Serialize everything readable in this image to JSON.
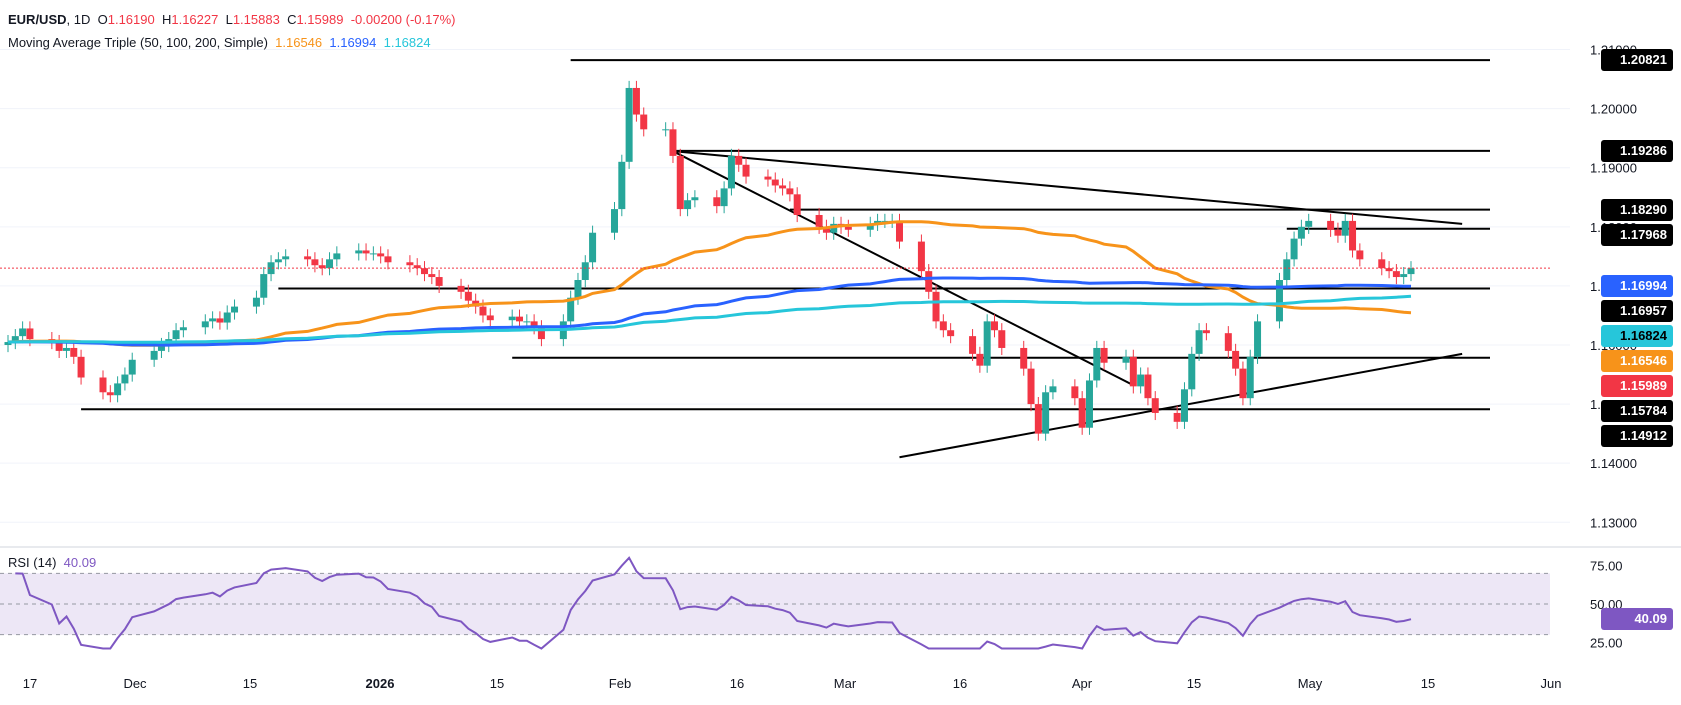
{
  "header": {
    "symbol": "EUR/USD",
    "interval": "1D",
    "o_label": "O",
    "o_value": "1.16190",
    "h_label": "H",
    "h_value": "1.16227",
    "l_label": "L",
    "l_value": "1.15883",
    "c_label": "C",
    "c_value": "1.15989",
    "change": "-0.00200 (-0.17%)"
  },
  "ma_legend": {
    "title": "Moving Average Triple (50, 100, 200, Simple)",
    "v50": "1.16546",
    "v100": "1.16994",
    "v200": "1.16824"
  },
  "rsi_legend": {
    "title": "RSI (14)",
    "value": "40.09"
  },
  "colors": {
    "up": "#26a69a",
    "down": "#f23645",
    "ma50": "#f7931a",
    "ma100": "#2962ff",
    "ma200": "#26c6da",
    "rsi": "#7e57c2",
    "rsi_band": "#ede7f6"
  },
  "price_axis": {
    "ticks": [
      "1.21000",
      "1.20000",
      "1.19000",
      "1.18000",
      "1.17000",
      "1.16000",
      "1.15000",
      "1.14000",
      "1.13000"
    ],
    "tick_values": [
      1.21,
      1.2,
      1.19,
      1.18,
      1.17,
      1.16,
      1.15,
      1.14,
      1.13
    ]
  },
  "price_tags": [
    {
      "text": "1.20821",
      "value": 1.20821,
      "bg": "#000000",
      "fg": "#ffffff"
    },
    {
      "text": "1.19286",
      "value": 1.19286,
      "bg": "#000000",
      "fg": "#ffffff"
    },
    {
      "text": "1.18290",
      "value": 1.1829,
      "bg": "#000000",
      "fg": "#ffffff"
    },
    {
      "text": "1.17968",
      "value": 1.17968,
      "bg": "#000000",
      "fg": "#ffffff"
    },
    {
      "text": "1.16994",
      "value": 1.16994,
      "bg": "#2962ff",
      "fg": "#ffffff"
    },
    {
      "text": "1.16957",
      "value": 1.16957,
      "bg": "#000000",
      "fg": "#ffffff"
    },
    {
      "text": "1.16824",
      "value": 1.16824,
      "bg": "#26c6da",
      "fg": "#000000"
    },
    {
      "text": "1.16546",
      "value": 1.16546,
      "bg": "#f7931a",
      "fg": "#ffffff"
    },
    {
      "text": "1.15989",
      "value": 1.15989,
      "bg": "#f23645",
      "fg": "#ffffff"
    },
    {
      "text": "1.15784",
      "value": 1.15784,
      "bg": "#000000",
      "fg": "#ffffff"
    },
    {
      "text": "1.14912",
      "value": 1.14912,
      "bg": "#000000",
      "fg": "#ffffff"
    }
  ],
  "rsi_axis": {
    "ticks": [
      "75.00",
      "50.00",
      "25.00"
    ],
    "tick_values": [
      75,
      50,
      25
    ],
    "current_text": "40.09",
    "current_value": 40.09
  },
  "time_axis": {
    "labels": [
      "17",
      "Dec",
      "15",
      "2026",
      "15",
      "Feb",
      "16",
      "Mar",
      "16",
      "Apr",
      "15",
      "May",
      "15",
      "Jun"
    ],
    "bold": [
      false,
      false,
      false,
      true,
      false,
      false,
      false,
      false,
      false,
      false,
      false,
      false,
      false,
      false
    ]
  },
  "chart_data": {
    "type": "candlestick",
    "symbol": "EUR/USD",
    "interval": "1D",
    "dates_start": "2025-11-11",
    "dates_end": "2026-05-22",
    "close": [
      1.1605,
      1.1615,
      1.1628,
      1.161,
      1.1605,
      1.159,
      1.1595,
      1.158,
      1.1545,
      1.152,
      1.1515,
      1.1535,
      1.155,
      1.1575,
      1.159,
      1.16,
      1.161,
      1.1625,
      1.163,
      1.164,
      1.1645,
      1.1638,
      1.1655,
      1.1665,
      1.168,
      1.172,
      1.174,
      1.1745,
      1.175,
      1.1745,
      1.1735,
      1.173,
      1.1745,
      1.1755,
      1.176,
      1.1755,
      1.1755,
      1.175,
      1.174,
      1.1735,
      1.173,
      1.172,
      1.1715,
      1.17,
      1.169,
      1.1675,
      1.1665,
      1.165,
      1.1642,
      1.1648,
      1.164,
      1.164,
      1.163,
      1.161,
      1.164,
      1.168,
      1.171,
      1.174,
      1.179,
      1.183,
      1.191,
      1.2035,
      1.199,
      1.1965,
      1.1965,
      1.192,
      1.183,
      1.1845,
      1.185,
      1.1835,
      1.1865,
      1.192,
      1.1905,
      1.1885,
      1.188,
      1.187,
      1.1865,
      1.1855,
      1.182,
      1.18,
      1.179,
      1.1805,
      1.18,
      1.1795,
      1.1805,
      1.181,
      1.181,
      1.181,
      1.1775,
      1.1725,
      1.169,
      1.164,
      1.1625,
      1.1615,
      1.1585,
      1.1565,
      1.164,
      1.1625,
      1.1595,
      1.156,
      1.15,
      1.145,
      1.152,
      1.153,
      1.151,
      1.146,
      1.154,
      1.1595,
      1.157,
      1.158,
      1.153,
      1.155,
      1.151,
      1.1485,
      1.147,
      1.1525,
      1.1585,
      1.1625,
      1.162,
      1.159,
      1.156,
      1.151,
      1.158,
      1.164,
      1.171,
      1.1745,
      1.178,
      1.18,
      1.181,
      1.1795,
      1.1785,
      1.181,
      1.176,
      1.1745,
      1.173,
      1.1725,
      1.1715,
      1.172,
      1.173,
      1.1725,
      1.171,
      1.169,
      1.172,
      1.173,
      1.17,
      1.173,
      1.174,
      1.1775,
      1.174,
      1.1745,
      1.178,
      1.1735,
      1.17,
      1.168,
      1.165,
      1.1625,
      1.164,
      1.161,
      1.162,
      1.1615,
      1.1619,
      1.1599
    ],
    "ma_lines": [
      {
        "name": "MA 50",
        "period": 50,
        "last": 1.16546
      },
      {
        "name": "MA 100",
        "period": 100,
        "last": 1.16994
      },
      {
        "name": "MA 200",
        "period": 200,
        "last": 1.16824
      }
    ],
    "horizontal_levels": [
      {
        "value": 1.20821,
        "from": "2026-01-27",
        "to": "2026-05-31"
      },
      {
        "value": 1.19286,
        "from": "2026-02-10",
        "to": "2026-05-31"
      },
      {
        "value": 1.1829,
        "from": "2026-02-26",
        "to": "2026-05-31"
      },
      {
        "value": 1.17968,
        "from": "2026-05-05",
        "to": "2026-05-31"
      },
      {
        "value": 1.16957,
        "from": "2025-12-18",
        "to": "2026-05-31"
      },
      {
        "value": 1.15784,
        "from": "2026-01-19",
        "to": "2026-05-31"
      },
      {
        "value": 1.14912,
        "from": "2025-11-21",
        "to": "2026-05-31"
      }
    ],
    "trend_lines": [
      {
        "from": {
          "date": "2026-02-10",
          "value": 1.1928
        },
        "to": {
          "date": "2026-05-29",
          "value": 1.1805
        }
      },
      {
        "from": {
          "date": "2026-02-10",
          "value": 1.1928
        },
        "to": {
          "date": "2026-04-14",
          "value": 1.1532
        }
      },
      {
        "from": {
          "date": "2026-03-13",
          "value": 1.141
        },
        "to": {
          "date": "2026-05-29",
          "value": 1.1585
        }
      }
    ],
    "ylim": [
      1.127,
      1.215
    ],
    "rsi": {
      "period": 14,
      "last": 40.09,
      "upper": 70,
      "middle": 50,
      "lower": 30,
      "ylim": [
        20,
        82
      ]
    }
  }
}
